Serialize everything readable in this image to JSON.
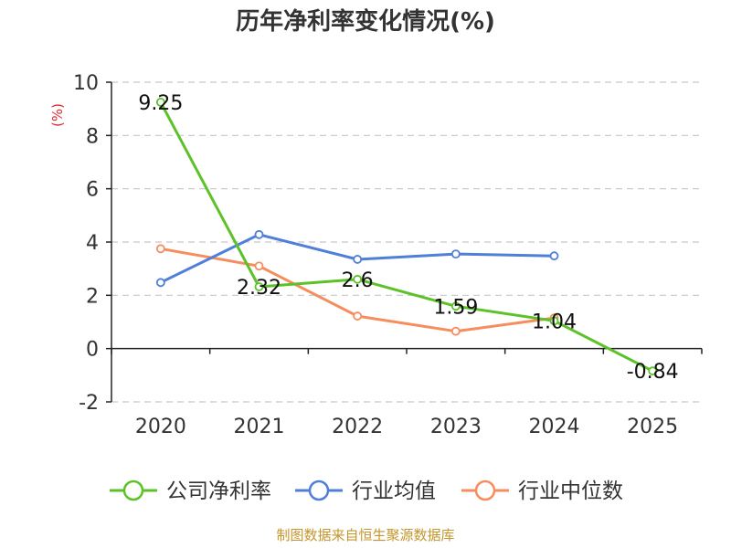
{
  "chart_data": {
    "type": "line",
    "title": "历年净利率变化情况(%)",
    "ylabel": "(%)",
    "xlabel": "",
    "categories": [
      "2020",
      "2021",
      "2022",
      "2023",
      "2024",
      "2025"
    ],
    "yticks": [
      -2,
      0,
      2,
      4,
      6,
      8,
      10
    ],
    "ylim": [
      -2,
      10
    ],
    "grid": true,
    "legend_position": "bottom",
    "series": [
      {
        "name": "公司净利率",
        "color": "#5cc227",
        "values": [
          9.25,
          2.32,
          2.6,
          1.59,
          1.04,
          -0.84
        ],
        "labels": [
          "9.25",
          "2.32",
          "2.6",
          "1.59",
          "1.04",
          "-0.84"
        ]
      },
      {
        "name": "行业均值",
        "color": "#4f7fd9",
        "values": [
          2.48,
          4.28,
          3.35,
          3.55,
          3.48,
          null
        ]
      },
      {
        "name": "行业中位数",
        "color": "#f58d5c",
        "values": [
          3.75,
          3.1,
          1.22,
          0.65,
          1.15,
          null
        ]
      }
    ]
  },
  "footer": {
    "source": "制图数据来自恒生聚源数据库"
  }
}
